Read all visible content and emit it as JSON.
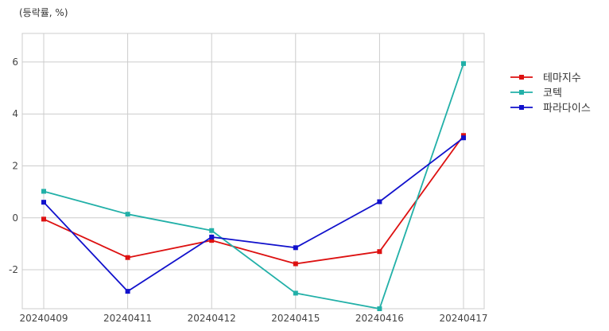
{
  "chart_data": {
    "type": "line",
    "unit_label": "(등락률, %)",
    "categories": [
      "20240409",
      "20240411",
      "20240412",
      "20240415",
      "20240416",
      "20240417"
    ],
    "ylim": [
      -3.5,
      7.1
    ],
    "yticks": [
      -2,
      0,
      2,
      4,
      6
    ],
    "grid": true,
    "legend_position": "right",
    "series": [
      {
        "name": "테마지수",
        "color": "#dd1111",
        "values": [
          -0.05,
          -1.53,
          -0.87,
          -1.77,
          -1.3,
          3.17
        ]
      },
      {
        "name": "코텍",
        "color": "#22b0a8",
        "values": [
          1.02,
          0.14,
          -0.49,
          -2.9,
          -3.5,
          5.94
        ]
      },
      {
        "name": "파라다이스",
        "color": "#1111cc",
        "values": [
          0.6,
          -2.83,
          -0.74,
          -1.15,
          0.62,
          3.08
        ]
      }
    ]
  }
}
